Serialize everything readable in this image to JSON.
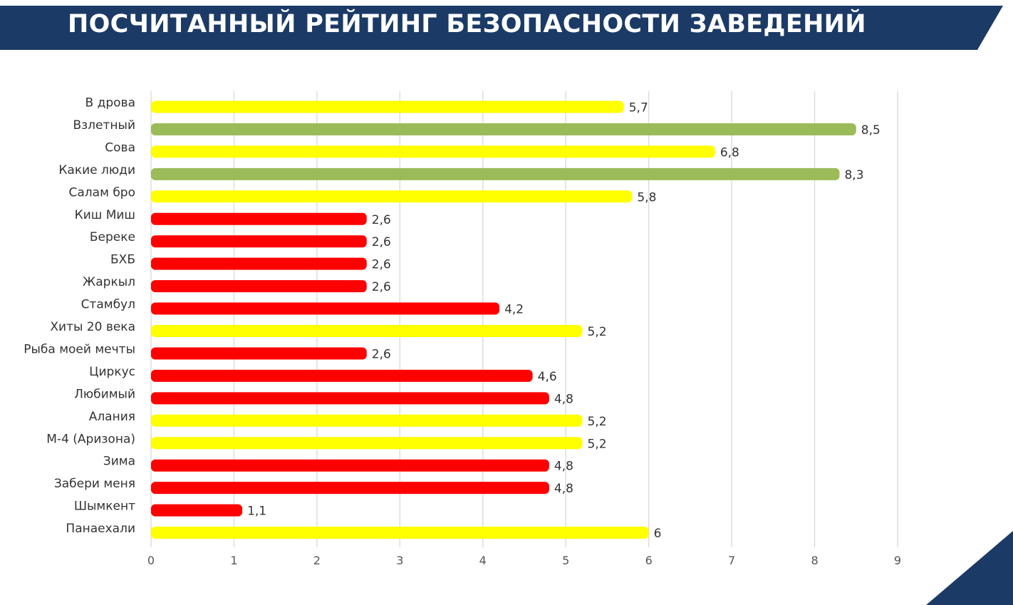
{
  "header": {
    "title": "ПОСЧИТАННЫЙ РЕЙТИНГ БЕЗОПАСНОСТИ ЗАВЕДЕНИЙ"
  },
  "colors": {
    "banner": "#1b3a66",
    "yellow": "#ffff00",
    "green": "#9bbb59",
    "red": "#ff0000",
    "grid": "#d9d9d9"
  },
  "chart_data": {
    "type": "bar",
    "orientation": "horizontal",
    "categories": [
      "В дрова",
      "Взлетный",
      "Сова",
      "Какие люди",
      "Салам бро",
      "Киш Миш",
      "Береке",
      "БХБ",
      "Жаркыл",
      "Стамбул",
      "Хиты 20 века",
      "Рыба моей мечты",
      "Циркус",
      "Любимый",
      "Алания",
      "М-4 (Аризона)",
      "Зима",
      "Забери меня",
      "Шымкент",
      "Панаехали"
    ],
    "values": [
      5.7,
      8.5,
      6.8,
      8.3,
      5.8,
      2.6,
      2.6,
      2.6,
      2.6,
      4.2,
      5.2,
      2.6,
      4.6,
      4.8,
      5.2,
      5.2,
      4.8,
      4.8,
      1.1,
      6
    ],
    "value_labels": [
      "5,7",
      "8,5",
      "6,8",
      "8,3",
      "5,8",
      "2,6",
      "2,6",
      "2,6",
      "2,6",
      "4,2",
      "5,2",
      "2,6",
      "4,6",
      "4,8",
      "5,2",
      "5,2",
      "4,8",
      "4,8",
      "1,1",
      "6"
    ],
    "bar_colors": [
      "yellow",
      "green",
      "yellow",
      "green",
      "yellow",
      "red",
      "red",
      "red",
      "red",
      "red",
      "yellow",
      "red",
      "red",
      "red",
      "yellow",
      "yellow",
      "red",
      "red",
      "red",
      "yellow"
    ],
    "x_ticks": [
      "0",
      "1",
      "2",
      "3",
      "4",
      "5",
      "6",
      "7",
      "8",
      "9"
    ],
    "xlim": [
      0,
      9
    ],
    "grid": "vertical",
    "legend": "none",
    "title": "",
    "xlabel": "",
    "ylabel": ""
  }
}
